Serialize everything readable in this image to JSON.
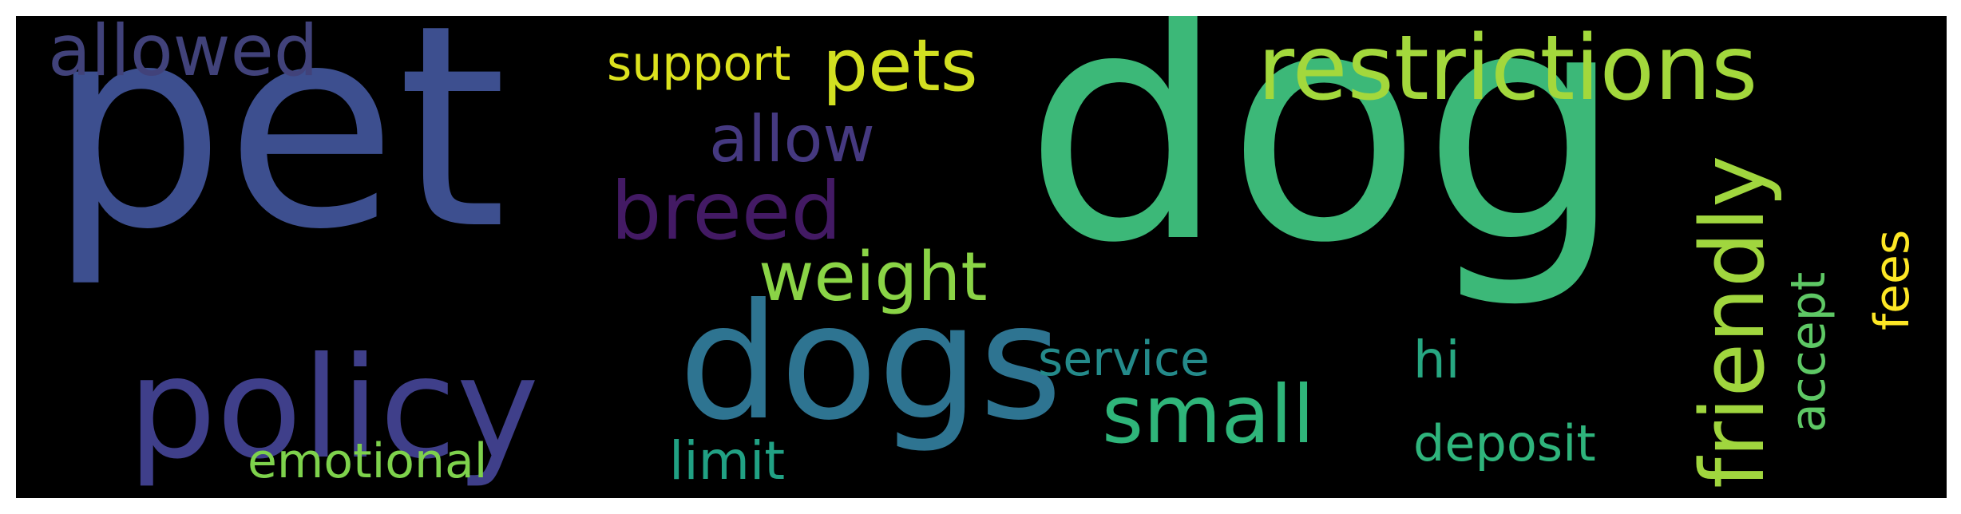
{
  "background_color": "#000000",
  "words": {
    "dog": {
      "text": "dog",
      "color": "#3cb878",
      "orientation": "horizontal"
    },
    "pet": {
      "text": "pet",
      "color": "#3d4f8f",
      "orientation": "horizontal"
    },
    "dogs": {
      "text": "dogs",
      "color": "#2e7491",
      "orientation": "horizontal"
    },
    "policy": {
      "text": "policy",
      "color": "#3f3f8a",
      "orientation": "horizontal"
    },
    "restrictions": {
      "text": "restrictions",
      "color": "#a3d83c",
      "orientation": "horizontal"
    },
    "friendly": {
      "text": "friendly",
      "color": "#a0d63e",
      "orientation": "vertical"
    },
    "small": {
      "text": "small",
      "color": "#2fb57a",
      "orientation": "horizontal"
    },
    "breed": {
      "text": "breed",
      "color": "#431a64",
      "orientation": "horizontal"
    },
    "weight": {
      "text": "weight",
      "color": "#8ad446",
      "orientation": "horizontal"
    },
    "pets": {
      "text": "pets",
      "color": "#d2e021",
      "orientation": "horizontal"
    },
    "allowed": {
      "text": "allowed",
      "color": "#41427a",
      "orientation": "horizontal"
    },
    "allow": {
      "text": "allow",
      "color": "#453980",
      "orientation": "horizontal"
    },
    "support": {
      "text": "support",
      "color": "#dce21e",
      "orientation": "horizontal"
    },
    "service": {
      "text": "service",
      "color": "#248a8a",
      "orientation": "horizontal"
    },
    "emotional": {
      "text": "emotional",
      "color": "#7ed24c",
      "orientation": "horizontal"
    },
    "limit": {
      "text": "limit",
      "color": "#21a184",
      "orientation": "horizontal"
    },
    "deposit": {
      "text": "deposit",
      "color": "#2fb47c",
      "orientation": "horizontal"
    },
    "hi": {
      "text": "hi",
      "color": "#27a882",
      "orientation": "horizontal"
    },
    "accept": {
      "text": "accept",
      "color": "#5ec865",
      "orientation": "vertical"
    },
    "fees": {
      "text": "fees",
      "color": "#fde725",
      "orientation": "vertical"
    }
  }
}
